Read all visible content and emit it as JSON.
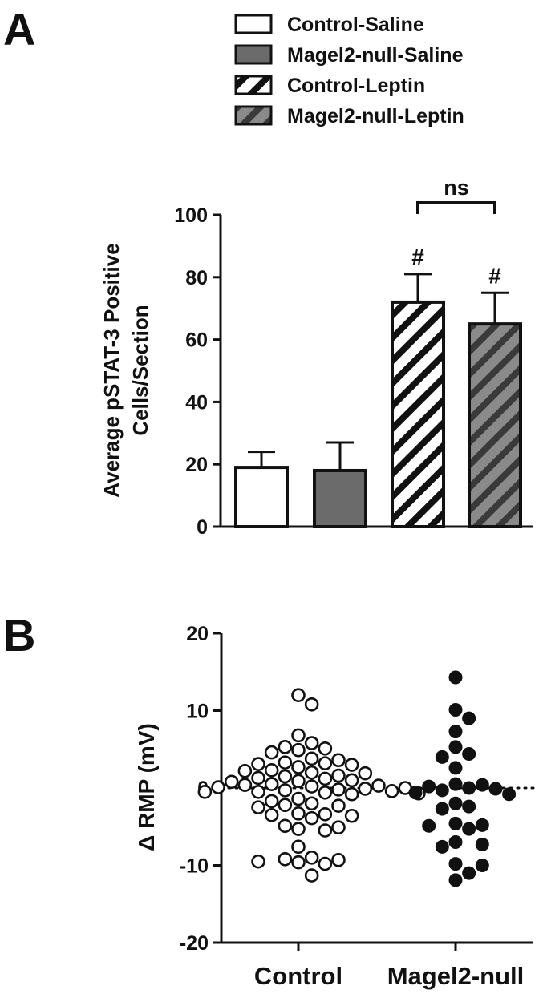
{
  "panels": {
    "a_label": "A",
    "b_label": "B"
  },
  "chart_data": [
    {
      "type": "bar",
      "ylabel_line1": "Average pSTAT-3 Positive",
      "ylabel_line2": "Cells/Section",
      "ylim": [
        0,
        100
      ],
      "yticks": [
        0,
        20,
        40,
        60,
        80,
        100
      ],
      "legend_position": "top-right",
      "bars": [
        {
          "name": "Control-Saline",
          "value": 19,
          "error": 5,
          "pattern": "solid-white",
          "annotation": ""
        },
        {
          "name": "Magel2-null-Saline",
          "value": 18,
          "error": 9,
          "pattern": "solid-gray",
          "annotation": ""
        },
        {
          "name": "Control-Leptin",
          "value": 72,
          "error": 9,
          "pattern": "hatch-white",
          "annotation": "#"
        },
        {
          "name": "Magel2-null-Leptin",
          "value": 65,
          "error": 10,
          "pattern": "hatch-gray",
          "annotation": "#"
        }
      ],
      "bracket_label": "ns",
      "colors": {
        "gray_fill": "#6b6b6b",
        "outline": "#111111"
      }
    },
    {
      "type": "scatter",
      "ylabel": "Δ RMP (mV)",
      "ylim": [
        -20,
        20
      ],
      "yticks": [
        -20,
        -10,
        0,
        10,
        20
      ],
      "reference_line_y": 0,
      "categories": [
        "Control",
        "Magel2-null"
      ],
      "series": [
        {
          "name": "Control",
          "marker": "open-circle",
          "values": [
            12,
            10.8,
            6.8,
            5.8,
            5.3,
            5.1,
            4.9,
            4.6,
            3.8,
            3.3,
            3.0,
            3.1,
            3.2,
            3.6,
            2.7,
            2.2,
            1.9,
            2.0,
            2.3,
            1.6,
            1.2,
            0.9,
            0.8,
            1.0,
            1.3,
            1.5,
            0.4,
            0.2,
            0.1,
            0.0,
            -0.1,
            0.3,
            0.5,
            -0.5,
            -0.3,
            -0.6,
            -0.8,
            -0.4,
            -0.2,
            -0.5,
            -0.7,
            -1.4,
            -1.7,
            -2.0,
            -2.3,
            -2.5,
            -2.2,
            -3.3,
            -3.6,
            -3.9,
            -3.4,
            -3.5,
            -5.1,
            -5.5,
            -5.3,
            -4.9,
            -7.6,
            -9.0,
            -9.3,
            -9.6,
            -9.8,
            -9.5,
            -9.2,
            -11.3
          ]
        },
        {
          "name": "Magel2-null",
          "marker": "filled-circle",
          "values": [
            14.3,
            10.1,
            9.0,
            7.3,
            5.3,
            4.4,
            4.0,
            2.6,
            0.5,
            0.2,
            0.0,
            -0.1,
            -0.3,
            -0.6,
            -0.8,
            0.4,
            -2.0,
            -2.7,
            -2.4,
            -4.6,
            -4.8,
            -5.3,
            -4.9,
            -7.0,
            -7.6,
            -7.3,
            -9.8,
            -10.0,
            -11.0,
            -11.9
          ]
        }
      ]
    }
  ]
}
